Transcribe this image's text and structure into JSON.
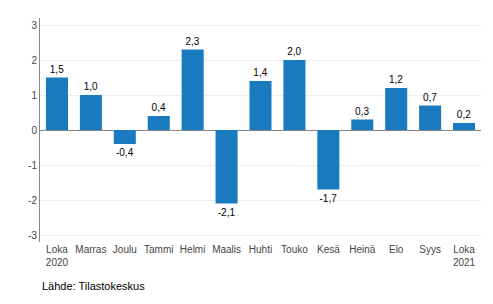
{
  "chart_data": {
    "type": "bar",
    "categories": [
      "Loka\n2020",
      "Marras",
      "Joulu",
      "Tammi",
      "Helmi",
      "Maalis",
      "Huhti",
      "Touko",
      "Kesä",
      "Heinä",
      "Elo",
      "Syys",
      "Loka\n2021"
    ],
    "values": [
      1.5,
      1.0,
      -0.4,
      0.4,
      2.3,
      -2.1,
      1.4,
      2.0,
      -1.7,
      0.3,
      1.2,
      0.7,
      0.2
    ],
    "value_labels": [
      "1,5",
      "1,0",
      "-0,4",
      "0,4",
      "2,3",
      "-2,1",
      "1,4",
      "2,0",
      "-1,7",
      "0,3",
      "1,2",
      "0,7",
      "0,2"
    ],
    "data_labels": true,
    "color": "#1a7abf",
    "ylim": [
      -3.2,
      3.2
    ],
    "yticks": [
      -3,
      -2,
      -1,
      0,
      1,
      2,
      3
    ],
    "grid": true,
    "annotations": [
      "Lähde: Tilastokeskus"
    ]
  }
}
